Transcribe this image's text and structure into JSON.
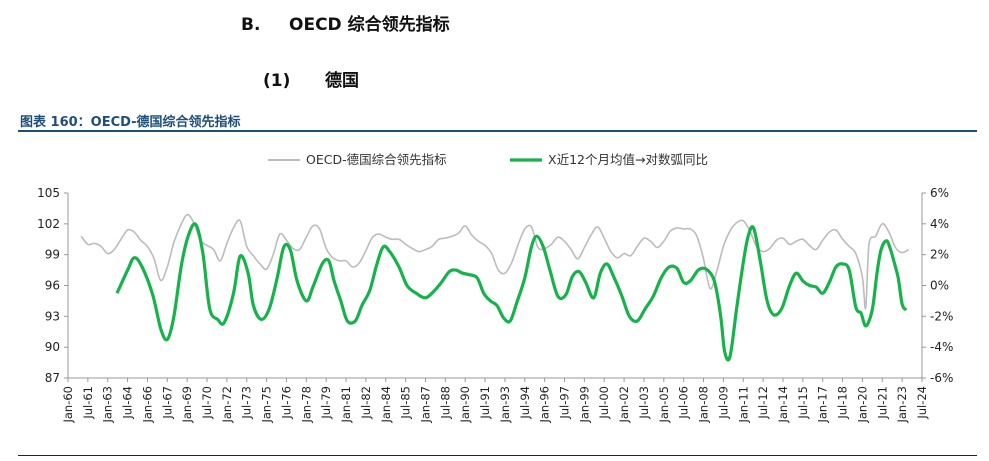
{
  "headings": {
    "section_letter": "B.",
    "section_title": "OECD 综合领先指标",
    "sub_number": "(1)",
    "sub_title": "德国"
  },
  "figure": {
    "title": "图表 160：OECD-德国综合领先指标"
  },
  "colors": {
    "gray_series": "#bcbcbc",
    "green_series": "#16b24a",
    "title_blue": "#1f4e79"
  },
  "chart_data": {
    "type": "line",
    "legend": [
      "OECD-德国综合领先指标",
      "X近12个月均值→对数弧同比"
    ],
    "left_axis": {
      "min": 87,
      "max": 105,
      "ticks": [
        "87",
        "90",
        "93",
        "96",
        "99",
        "102",
        "105"
      ]
    },
    "right_axis": {
      "min": -6,
      "max": 6,
      "ticks": [
        "-6%",
        "-4%",
        "-2%",
        "0%",
        "2%",
        "4%",
        "6%"
      ]
    },
    "x_range": [
      1960.0,
      2024.5
    ],
    "x_tick_labels": [
      "Jan-60",
      "Jul-61",
      "Jan-63",
      "Jul-64",
      "Jan-66",
      "Jul-67",
      "Jan-69",
      "Jul-70",
      "Jan-72",
      "Jul-73",
      "Jan-75",
      "Jul-76",
      "Jan-78",
      "Jul-79",
      "Jan-81",
      "Jul-82",
      "Jan-84",
      "Jul-85",
      "Jan-87",
      "Jul-88",
      "Jan-90",
      "Jul-91",
      "Jan-93",
      "Jul-94",
      "Jan-96",
      "Jul-97",
      "Jan-99",
      "Jul-00",
      "Jan-02",
      "Jul-03",
      "Jan-05",
      "Jul-06",
      "Jan-08",
      "Jul-09",
      "Jan-11",
      "Jul-12",
      "Jan-14",
      "Jul-15",
      "Jan-17",
      "Jul-18",
      "Jan-20",
      "Jul-21",
      "Jan-23",
      "Jul-24"
    ],
    "series": [
      {
        "name": "OECD-德国综合领先指标",
        "axis": "left",
        "x": [
          1961.0,
          1961.5,
          1962.0,
          1962.5,
          1963.0,
          1963.5,
          1964.0,
          1964.5,
          1965.0,
          1965.5,
          1966.0,
          1966.5,
          1967.0,
          1967.5,
          1968.0,
          1968.5,
          1969.0,
          1969.5,
          1970.0,
          1970.5,
          1971.0,
          1971.5,
          1972.0,
          1972.5,
          1973.0,
          1973.5,
          1974.0,
          1974.5,
          1975.0,
          1975.5,
          1976.0,
          1976.5,
          1977.0,
          1977.5,
          1978.0,
          1978.5,
          1979.0,
          1979.5,
          1980.0,
          1980.5,
          1981.0,
          1981.5,
          1982.0,
          1982.5,
          1983.0,
          1983.5,
          1984.0,
          1984.5,
          1985.0,
          1985.5,
          1986.0,
          1986.5,
          1987.0,
          1987.5,
          1988.0,
          1988.5,
          1989.0,
          1989.5,
          1990.0,
          1990.5,
          1991.0,
          1991.5,
          1992.0,
          1992.5,
          1993.0,
          1993.5,
          1994.0,
          1994.5,
          1995.0,
          1995.5,
          1996.0,
          1996.5,
          1997.0,
          1997.5,
          1998.0,
          1998.5,
          1999.0,
          1999.5,
          2000.0,
          2000.5,
          2001.0,
          2001.5,
          2002.0,
          2002.5,
          2003.0,
          2003.5,
          2004.0,
          2004.5,
          2005.0,
          2005.5,
          2006.0,
          2006.5,
          2007.0,
          2007.5,
          2008.0,
          2008.5,
          2009.0,
          2009.5,
          2010.0,
          2010.5,
          2011.0,
          2011.5,
          2012.0,
          2012.5,
          2013.0,
          2013.5,
          2014.0,
          2014.5,
          2015.0,
          2015.5,
          2016.0,
          2016.5,
          2017.0,
          2017.5,
          2018.0,
          2018.5,
          2019.0,
          2019.5,
          2020.0,
          2020.25,
          2020.5,
          2021.0,
          2021.5,
          2022.0,
          2022.5,
          2023.0,
          2023.5
        ],
        "values": [
          100.8,
          100.0,
          100.1,
          99.8,
          99.1,
          99.5,
          100.5,
          101.4,
          101.2,
          100.4,
          99.8,
          98.6,
          96.5,
          97.8,
          100.2,
          101.8,
          102.9,
          102.1,
          100.4,
          99.9,
          99.5,
          98.4,
          100.1,
          101.6,
          102.3,
          99.8,
          98.9,
          98.1,
          97.6,
          99.0,
          101.0,
          100.4,
          99.6,
          99.5,
          100.7,
          101.8,
          101.5,
          99.6,
          98.7,
          98.4,
          98.4,
          97.8,
          98.2,
          99.4,
          100.7,
          101.0,
          100.7,
          100.5,
          100.5,
          100.0,
          99.6,
          99.3,
          99.5,
          99.8,
          100.5,
          100.6,
          100.8,
          101.1,
          101.8,
          100.9,
          100.3,
          99.9,
          99.1,
          97.5,
          97.2,
          98.2,
          100.0,
          101.5,
          101.7,
          99.7,
          99.6,
          100.0,
          100.7,
          100.3,
          99.5,
          98.6,
          99.7,
          100.9,
          101.7,
          100.6,
          99.3,
          98.7,
          99.1,
          98.9,
          99.8,
          100.6,
          100.3,
          99.7,
          100.3,
          101.3,
          101.6,
          101.5,
          101.5,
          100.8,
          98.6,
          95.7,
          97.4,
          99.8,
          101.3,
          102.1,
          102.3,
          101.3,
          99.8,
          99.3,
          99.6,
          100.4,
          100.6,
          100.0,
          100.3,
          100.5,
          99.9,
          99.5,
          100.4,
          101.2,
          101.4,
          100.5,
          99.8,
          99.1,
          96.8,
          93.8,
          100.0,
          100.8,
          102.0,
          101.2,
          99.7,
          99.2,
          99.5
        ]
      },
      {
        "name": "X近12个月均值→对数弧同比",
        "axis": "right",
        "x": [
          1963.7,
          1964.5,
          1965.0,
          1965.6,
          1966.4,
          1967.0,
          1967.5,
          1968.0,
          1968.6,
          1969.2,
          1969.7,
          1970.2,
          1970.7,
          1971.3,
          1971.8,
          1972.5,
          1973.0,
          1973.6,
          1974.0,
          1974.6,
          1975.2,
          1975.8,
          1976.3,
          1976.8,
          1977.3,
          1978.0,
          1978.5,
          1979.2,
          1979.7,
          1980.1,
          1980.6,
          1981.1,
          1981.7,
          1982.2,
          1982.8,
          1983.3,
          1983.8,
          1984.3,
          1985.0,
          1985.6,
          1986.3,
          1987.0,
          1987.6,
          1988.2,
          1988.8,
          1989.3,
          1989.8,
          1990.3,
          1990.9,
          1991.4,
          1991.9,
          1992.4,
          1992.9,
          1993.4,
          1993.9,
          1994.5,
          1995.0,
          1995.4,
          1995.9,
          1996.4,
          1997.0,
          1997.6,
          1998.1,
          1998.6,
          1999.1,
          1999.7,
          2000.2,
          2000.7,
          2001.2,
          2001.8,
          2002.4,
          2003.0,
          2003.6,
          2004.2,
          2004.8,
          2005.4,
          2006.0,
          2006.5,
          2007.0,
          2007.6,
          2008.1,
          2008.6,
          2008.9,
          2009.3,
          2009.6,
          2010.0,
          2010.5,
          2011.0,
          2011.4,
          2011.8,
          2012.3,
          2012.8,
          2013.3,
          2013.9,
          2014.5,
          2015.0,
          2015.5,
          2016.0,
          2016.5,
          2017.0,
          2017.5,
          2018.0,
          2018.5,
          2019.0,
          2019.5,
          2019.9,
          2020.2,
          2020.5,
          2020.8,
          2021.1,
          2021.4,
          2021.8,
          2022.1,
          2022.4,
          2022.7,
          2023.0,
          2023.3
        ],
        "values": [
          -0.5,
          1.0,
          1.8,
          1.2,
          -0.6,
          -2.8,
          -3.5,
          -2.0,
          1.5,
          3.5,
          3.9,
          2.0,
          -1.5,
          -2.2,
          -2.4,
          -0.5,
          1.9,
          0.8,
          -1.3,
          -2.2,
          -1.5,
          0.5,
          2.5,
          2.3,
          0.3,
          -1.0,
          -0.1,
          1.4,
          1.6,
          0.3,
          -1.0,
          -2.3,
          -2.3,
          -1.3,
          -0.3,
          1.3,
          2.5,
          2.2,
          1.2,
          0.0,
          -0.5,
          -0.8,
          -0.4,
          0.2,
          0.9,
          1.0,
          0.8,
          0.7,
          0.5,
          -0.5,
          -1.0,
          -1.3,
          -2.1,
          -2.3,
          -1.1,
          0.5,
          2.5,
          3.2,
          2.5,
          1.0,
          -0.7,
          -0.6,
          0.6,
          0.9,
          0.2,
          -0.8,
          0.8,
          1.4,
          0.6,
          -0.6,
          -2.0,
          -2.3,
          -1.5,
          -0.7,
          0.5,
          1.2,
          1.1,
          0.2,
          0.3,
          1.0,
          1.1,
          0.7,
          0.0,
          -2.0,
          -4.3,
          -4.6,
          -1.5,
          1.5,
          3.3,
          3.7,
          1.5,
          -1.0,
          -1.9,
          -1.5,
          0.0,
          0.8,
          0.3,
          0.0,
          -0.1,
          -0.5,
          0.2,
          1.2,
          1.4,
          1.0,
          -1.4,
          -1.8,
          -2.6,
          -2.3,
          -1.3,
          0.8,
          2.3,
          2.9,
          2.4,
          1.5,
          0.5,
          -1.2,
          -1.6
        ]
      }
    ]
  }
}
